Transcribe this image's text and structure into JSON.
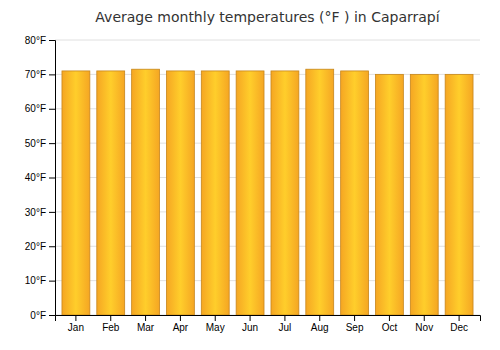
{
  "chart_data": {
    "type": "bar",
    "title": "Average monthly temperatures (°F ) in Caparrapí",
    "categories": [
      "Jan",
      "Feb",
      "Mar",
      "Apr",
      "May",
      "Jun",
      "Jul",
      "Aug",
      "Sep",
      "Oct",
      "Nov",
      "Dec"
    ],
    "values": [
      71,
      71,
      71.5,
      71,
      71,
      71,
      71,
      71.5,
      71,
      70,
      70,
      70
    ],
    "color": "#F5A623",
    "ylim": [
      0,
      80
    ],
    "yticks": [
      {
        "value": 0,
        "label": "0°F"
      },
      {
        "value": 10,
        "label": "10°F"
      },
      {
        "value": 20,
        "label": "20°F"
      },
      {
        "value": 30,
        "label": "30°F"
      },
      {
        "value": 40,
        "label": "40°F"
      },
      {
        "value": 50,
        "label": "50°F"
      },
      {
        "value": 60,
        "label": "60°F"
      },
      {
        "value": 70,
        "label": "70°F"
      },
      {
        "value": 80,
        "label": "80°F"
      }
    ],
    "grid": true
  }
}
